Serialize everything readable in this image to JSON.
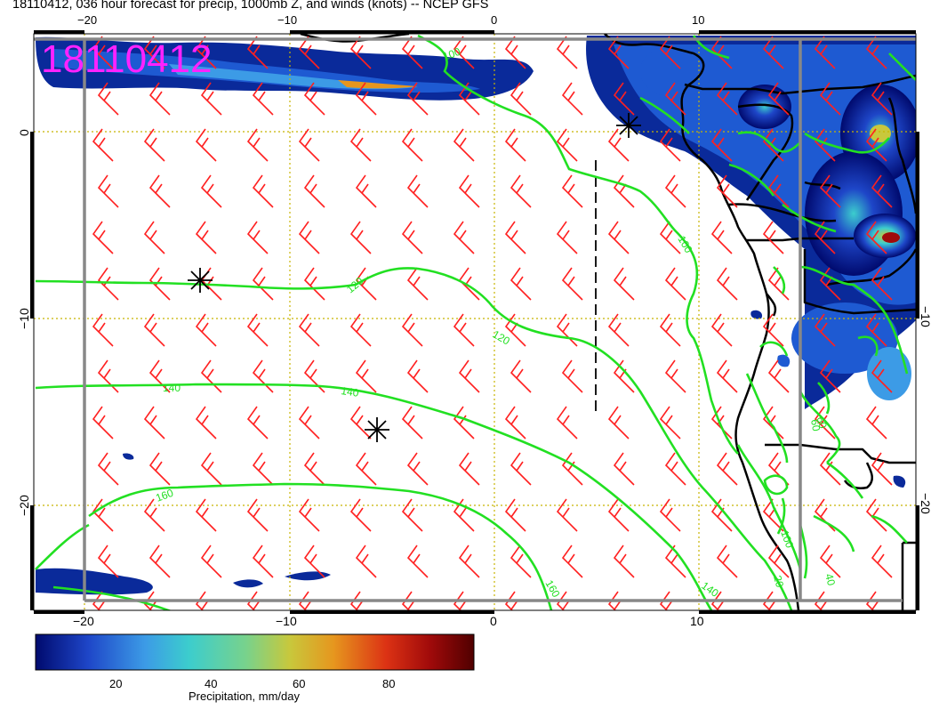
{
  "title": "18110412, 036 hour forecast for precip, 1000mb Z, and winds (knots) -- NCEP GFS",
  "stamp": "18110412",
  "lon_ticks": [
    "−20",
    "−10",
    "0",
    "10"
  ],
  "lat_ticks": [
    "0",
    "−10",
    "−20"
  ],
  "contours": [
    {
      "label": "120",
      "value": 120
    },
    {
      "label": "120",
      "value": 120
    },
    {
      "label": "140",
      "value": 140
    },
    {
      "label": "140",
      "value": 140
    },
    {
      "label": "160",
      "value": 160
    },
    {
      "label": "160",
      "value": 160
    },
    {
      "label": "140",
      "value": 140
    },
    {
      "label": "100",
      "value": 100
    },
    {
      "label": "100",
      "value": 100
    },
    {
      "label": "60",
      "value": 60
    },
    {
      "label": "20",
      "value": 20
    },
    {
      "label": "40",
      "value": 40
    },
    {
      "label": "60",
      "value": 60
    },
    {
      "label": "100",
      "value": 100
    }
  ],
  "colorbar": {
    "ticks": [
      "20",
      "40",
      "60",
      "80"
    ],
    "label": "Precipitation, mm/day",
    "colors": [
      "#000a6e",
      "#1e46c8",
      "#3c9be6",
      "#3ccdcd",
      "#78d28c",
      "#c8c83c",
      "#e6961e",
      "#dc3214",
      "#a00a0a",
      "#500000"
    ]
  },
  "colors": {
    "contour": "#22e022",
    "barb": "#ff2020",
    "gridline": "#c8b400",
    "coast": "#000000",
    "border_box": "#888888",
    "stamp": "#ff22ff"
  }
}
